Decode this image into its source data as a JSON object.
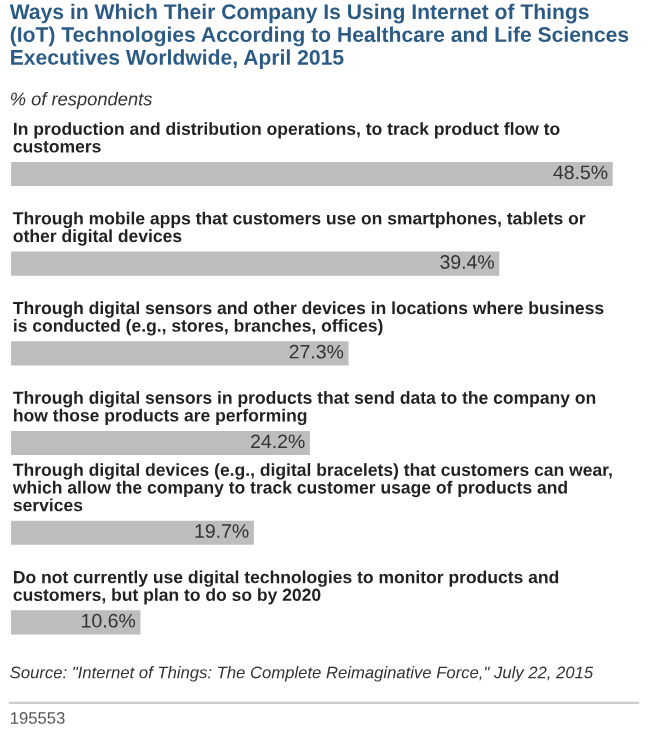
{
  "chart_data": {
    "type": "bar",
    "orientation": "horizontal",
    "title": "Ways in Which Their Company Is Using Internet of Things (IoT) Technologies According to Healthcare and Life Sciences Executives Worldwide, April 2015",
    "subtitle": "% of respondents",
    "categories": [
      "In production and distribution operations, to track product flow to customers",
      "Through mobile apps that customers use on smartphones, tablets or other digital devices",
      "Through digital sensors and other devices in locations where business is conducted (e.g., stores, branches, offices)",
      "Through digital sensors in products that send data to the company on how those products are performing",
      "Through digital devices (e.g., digital bracelets) that customers can wear, which allow the company to track customer usage of products and services",
      "Do not currently use digital technologies to monitor products and customers, but plan to do so by 2020"
    ],
    "values": [
      48.5,
      39.4,
      27.3,
      24.2,
      19.7,
      10.6
    ],
    "value_labels": [
      "48.5%",
      "39.4%",
      "27.3%",
      "24.2%",
      "19.7%",
      "10.6%"
    ],
    "color": "#bdbdbd",
    "annotations": [
      "Source: \"Internet of Things: The Complete Reimaginative Force,\" July 22, 2015",
      "195553"
    ]
  }
}
